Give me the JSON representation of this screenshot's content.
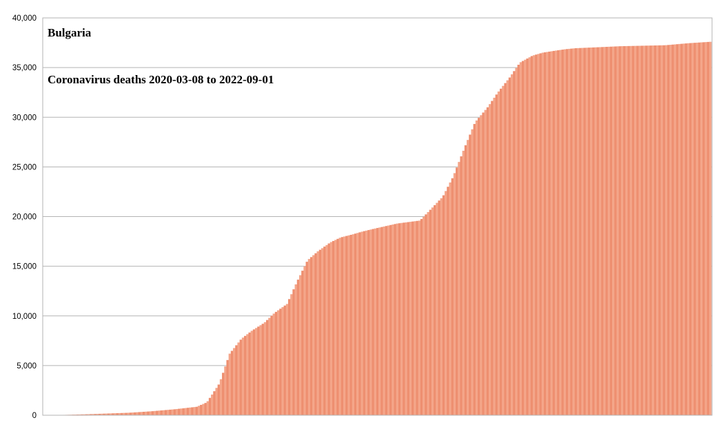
{
  "chart_data": {
    "type": "bar",
    "title": "Bulgaria",
    "subtitle": "Coronavirus deaths 2020-03-08 to 2022-09-01",
    "xlabel": "",
    "ylabel": "",
    "ylim": [
      0,
      40000
    ],
    "yticks": [
      0,
      5000,
      10000,
      15000,
      20000,
      25000,
      30000,
      35000,
      40000
    ],
    "ytick_labels": [
      "0",
      "5,000",
      "10,000",
      "15,000",
      "20,000",
      "25,000",
      "30,000",
      "35,000",
      "40,000"
    ],
    "grid": true,
    "legend": "none",
    "colors": {
      "bar": "#f4a68a",
      "bar_line": "#ee8f70",
      "grid": "#b3b3b3",
      "axis": "#b3b3b3"
    },
    "x": [
      "2020-03-08",
      "2020-04-01",
      "2020-05-01",
      "2020-06-01",
      "2020-07-01",
      "2020-08-01",
      "2020-09-01",
      "2020-10-01",
      "2020-10-15",
      "2020-11-01",
      "2020-11-15",
      "2020-12-01",
      "2020-12-15",
      "2021-01-01",
      "2021-01-15",
      "2021-02-01",
      "2021-02-15",
      "2021-03-01",
      "2021-03-15",
      "2021-04-01",
      "2021-04-15",
      "2021-05-01",
      "2021-05-15",
      "2021-06-01",
      "2021-07-01",
      "2021-08-01",
      "2021-09-01",
      "2021-09-15",
      "2021-10-01",
      "2021-10-15",
      "2021-11-01",
      "2021-11-15",
      "2021-12-01",
      "2021-12-15",
      "2022-01-01",
      "2022-01-15",
      "2022-02-01",
      "2022-02-15",
      "2022-03-01",
      "2022-04-01",
      "2022-05-01",
      "2022-06-01",
      "2022-07-01",
      "2022-08-01",
      "2022-09-01"
    ],
    "values": [
      0,
      30,
      90,
      170,
      250,
      400,
      600,
      850,
      1300,
      3200,
      6200,
      7700,
      8500,
      9300,
      10300,
      11200,
      13500,
      15600,
      16500,
      17400,
      17900,
      18200,
      18500,
      18800,
      19300,
      19600,
      22000,
      24000,
      27000,
      29500,
      31000,
      32500,
      34000,
      35500,
      36200,
      36500,
      36700,
      36850,
      36950,
      37050,
      37150,
      37200,
      37250,
      37450,
      37600
    ]
  }
}
